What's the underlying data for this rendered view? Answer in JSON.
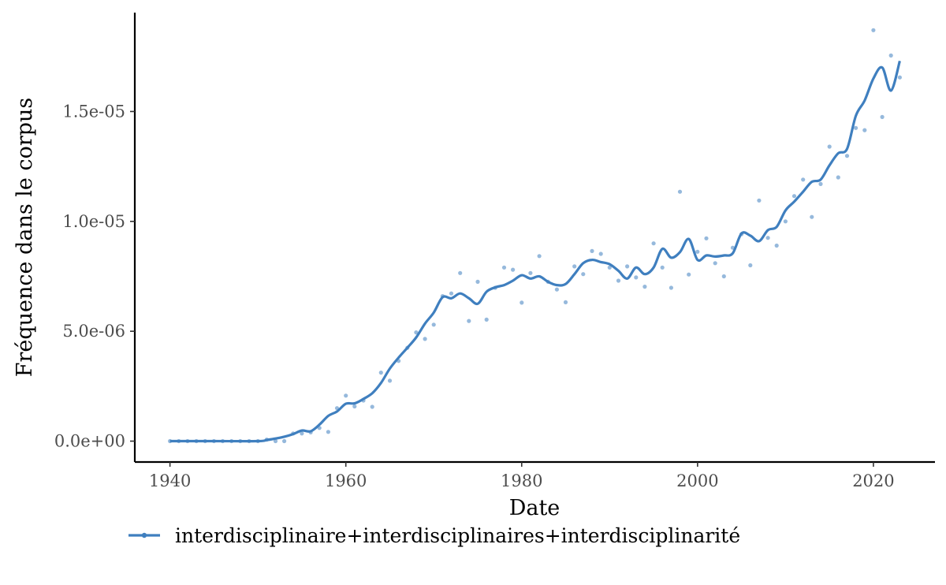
{
  "chart_data": {
    "type": "scatter",
    "title": "",
    "xlabel": "Date",
    "ylabel": "Fréquence dans le corpus",
    "xlim": [
      1936,
      2027
    ],
    "ylim": [
      -9.5e-07,
      1.95e-05
    ],
    "x_ticks": [
      {
        "value": 1940,
        "label": "1940"
      },
      {
        "value": 1960,
        "label": "1960"
      },
      {
        "value": 1980,
        "label": "1980"
      },
      {
        "value": 2000,
        "label": "2000"
      },
      {
        "value": 2020,
        "label": "2020"
      }
    ],
    "y_ticks": [
      {
        "value": 0,
        "label": "0.0e+00"
      },
      {
        "value": 5e-06,
        "label": "5.0e-06"
      },
      {
        "value": 1e-05,
        "label": "1.0e-05"
      },
      {
        "value": 1.5e-05,
        "label": "1.5e-05"
      }
    ],
    "grid": false,
    "legend_position": "bottom",
    "series": [
      {
        "name": "interdisciplinaire+interdisciplinaires+interdisciplinarité",
        "color": "#3f7fbf",
        "points": [
          [
            1940,
            0.0
          ],
          [
            1941,
            0.0
          ],
          [
            1942,
            0.0
          ],
          [
            1943,
            0.0
          ],
          [
            1944,
            0.0
          ],
          [
            1945,
            0.0
          ],
          [
            1946,
            0.0
          ],
          [
            1947,
            0.0
          ],
          [
            1948,
            0.0
          ],
          [
            1949,
            0.0
          ],
          [
            1950,
            0.0
          ],
          [
            1951,
            7e-08
          ],
          [
            1952,
            0.0
          ],
          [
            1953,
            0.0
          ],
          [
            1954,
            3.5e-07
          ],
          [
            1955,
            3.5e-07
          ],
          [
            1956,
            4e-07
          ],
          [
            1957,
            6e-07
          ],
          [
            1958,
            4.2e-07
          ],
          [
            1959,
            1.5e-06
          ],
          [
            1960,
            2.07e-06
          ],
          [
            1961,
            1.58e-06
          ],
          [
            1962,
            1.85e-06
          ],
          [
            1963,
            1.56e-06
          ],
          [
            1964,
            3.12e-06
          ],
          [
            1965,
            2.75e-06
          ],
          [
            1966,
            3.65e-06
          ],
          [
            1967,
            4.25e-06
          ],
          [
            1968,
            4.95e-06
          ],
          [
            1969,
            4.65e-06
          ],
          [
            1970,
            5.3e-06
          ],
          [
            1971,
            6.6e-06
          ],
          [
            1972,
            6.72e-06
          ],
          [
            1973,
            7.65e-06
          ],
          [
            1974,
            5.47e-06
          ],
          [
            1975,
            7.25e-06
          ],
          [
            1976,
            5.53e-06
          ],
          [
            1977,
            6.98e-06
          ],
          [
            1978,
            7.9e-06
          ],
          [
            1979,
            7.8e-06
          ],
          [
            1980,
            6.3e-06
          ],
          [
            1981,
            7.65e-06
          ],
          [
            1982,
            8.42e-06
          ],
          [
            1983,
            7.25e-06
          ],
          [
            1984,
            6.9e-06
          ],
          [
            1985,
            6.32e-06
          ],
          [
            1986,
            7.95e-06
          ],
          [
            1987,
            7.6e-06
          ],
          [
            1988,
            8.65e-06
          ],
          [
            1989,
            8.52e-06
          ],
          [
            1990,
            7.9e-06
          ],
          [
            1991,
            7.3e-06
          ],
          [
            1992,
            7.95e-06
          ],
          [
            1993,
            7.45e-06
          ],
          [
            1994,
            7.03e-06
          ],
          [
            1995,
            9e-06
          ],
          [
            1996,
            7.9e-06
          ],
          [
            1997,
            6.98e-06
          ],
          [
            1998,
            1.135e-05
          ],
          [
            1999,
            7.58e-06
          ],
          [
            2000,
            8.62e-06
          ],
          [
            2001,
            9.23e-06
          ],
          [
            2002,
            8.1e-06
          ],
          [
            2003,
            7.5e-06
          ],
          [
            2004,
            8.8e-06
          ],
          [
            2005,
            9.42e-06
          ],
          [
            2006,
            8e-06
          ],
          [
            2007,
            1.095e-05
          ],
          [
            2008,
            9.25e-06
          ],
          [
            2009,
            8.9e-06
          ],
          [
            2010,
            1e-05
          ],
          [
            2011,
            1.115e-05
          ],
          [
            2012,
            1.19e-05
          ],
          [
            2013,
            1.02e-05
          ],
          [
            2014,
            1.17e-05
          ],
          [
            2015,
            1.34e-05
          ],
          [
            2016,
            1.2e-05
          ],
          [
            2017,
            1.298e-05
          ],
          [
            2018,
            1.425e-05
          ],
          [
            2019,
            1.415e-05
          ],
          [
            2020,
            1.87e-05
          ],
          [
            2021,
            1.475e-05
          ],
          [
            2022,
            1.755e-05
          ],
          [
            2023,
            1.655e-05
          ]
        ],
        "smooth": [
          [
            1940,
            0.0
          ],
          [
            1945,
            0.0
          ],
          [
            1950,
            0.0
          ],
          [
            1951,
            5e-08
          ],
          [
            1952,
            1.2e-07
          ],
          [
            1953,
            2e-07
          ],
          [
            1954,
            3.2e-07
          ],
          [
            1955,
            4.8e-07
          ],
          [
            1956,
            4.5e-07
          ],
          [
            1957,
            7.5e-07
          ],
          [
            1958,
            1.15e-06
          ],
          [
            1959,
            1.35e-06
          ],
          [
            1960,
            1.7e-06
          ],
          [
            1961,
            1.72e-06
          ],
          [
            1962,
            1.92e-06
          ],
          [
            1963,
            2.18e-06
          ],
          [
            1964,
            2.65e-06
          ],
          [
            1965,
            3.3e-06
          ],
          [
            1966,
            3.8e-06
          ],
          [
            1967,
            4.25e-06
          ],
          [
            1968,
            4.72e-06
          ],
          [
            1969,
            5.35e-06
          ],
          [
            1970,
            5.85e-06
          ],
          [
            1971,
            6.55e-06
          ],
          [
            1972,
            6.5e-06
          ],
          [
            1973,
            6.72e-06
          ],
          [
            1974,
            6.5e-06
          ],
          [
            1975,
            6.25e-06
          ],
          [
            1976,
            6.8e-06
          ],
          [
            1977,
            7e-06
          ],
          [
            1978,
            7.1e-06
          ],
          [
            1979,
            7.3e-06
          ],
          [
            1980,
            7.55e-06
          ],
          [
            1981,
            7.4e-06
          ],
          [
            1982,
            7.5e-06
          ],
          [
            1983,
            7.25e-06
          ],
          [
            1984,
            7.1e-06
          ],
          [
            1985,
            7.15e-06
          ],
          [
            1986,
            7.6e-06
          ],
          [
            1987,
            8.1e-06
          ],
          [
            1988,
            8.25e-06
          ],
          [
            1989,
            8.15e-06
          ],
          [
            1990,
            8.05e-06
          ],
          [
            1991,
            7.75e-06
          ],
          [
            1992,
            7.4e-06
          ],
          [
            1993,
            7.9e-06
          ],
          [
            1994,
            7.6e-06
          ],
          [
            1995,
            7.9e-06
          ],
          [
            1996,
            8.75e-06
          ],
          [
            1997,
            8.35e-06
          ],
          [
            1998,
            8.6e-06
          ],
          [
            1999,
            9.2e-06
          ],
          [
            2000,
            8.25e-06
          ],
          [
            2001,
            8.45e-06
          ],
          [
            2002,
            8.4e-06
          ],
          [
            2003,
            8.45e-06
          ],
          [
            2004,
            8.55e-06
          ],
          [
            2005,
            9.45e-06
          ],
          [
            2006,
            9.35e-06
          ],
          [
            2007,
            9.1e-06
          ],
          [
            2008,
            9.6e-06
          ],
          [
            2009,
            9.75e-06
          ],
          [
            2010,
            1.05e-05
          ],
          [
            2011,
            1.09e-05
          ],
          [
            2012,
            1.135e-05
          ],
          [
            2013,
            1.18e-05
          ],
          [
            2014,
            1.19e-05
          ],
          [
            2015,
            1.255e-05
          ],
          [
            2016,
            1.31e-05
          ],
          [
            2017,
            1.33e-05
          ],
          [
            2018,
            1.48e-05
          ],
          [
            2019,
            1.55e-05
          ],
          [
            2020,
            1.65e-05
          ],
          [
            2021,
            1.7e-05
          ],
          [
            2022,
            1.595e-05
          ],
          [
            2023,
            1.73e-05
          ]
        ]
      }
    ]
  }
}
